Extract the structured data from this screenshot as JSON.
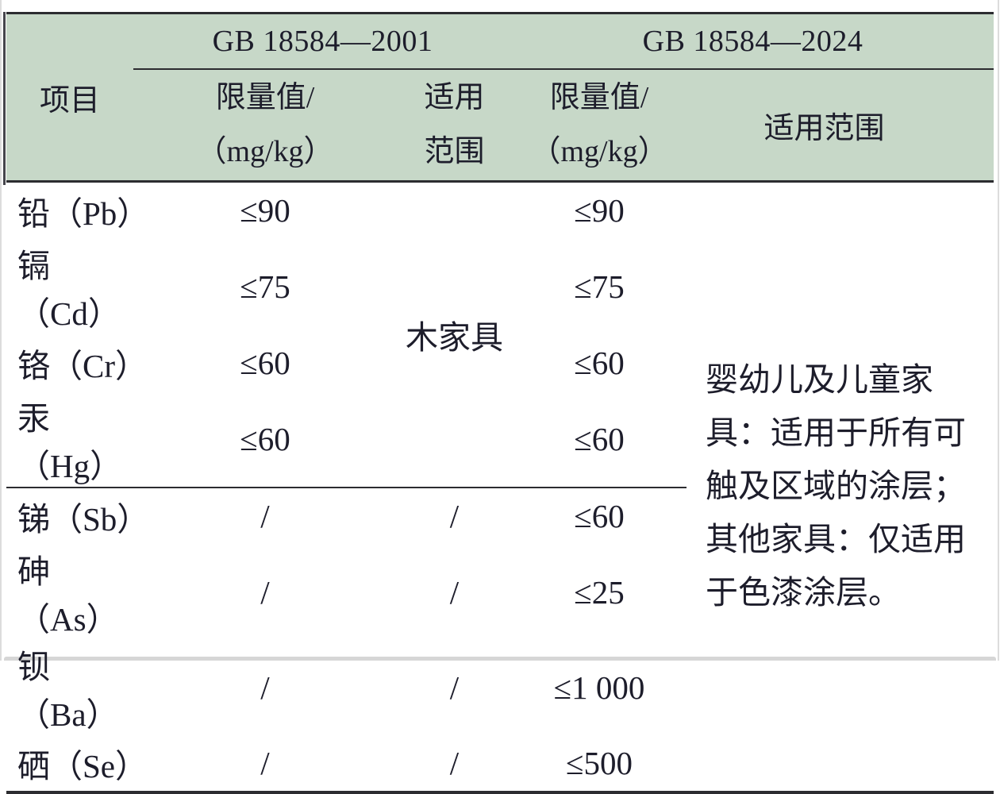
{
  "table": {
    "colors": {
      "header_bg": "#c7d8c8",
      "rule_line": "#2c2c30",
      "text": "#1d1d2b"
    },
    "header": {
      "item_label": "项目",
      "group_2001": {
        "title": "GB 18584—2001",
        "limit_line1": "限量值/",
        "limit_line2": "（mg/kg）",
        "scope_line1": "适用",
        "scope_line2": "范围"
      },
      "group_2024": {
        "title": "GB 18584—2024",
        "limit_line1": "限量值/",
        "limit_line2": "（mg/kg）",
        "scope_label": "适用范围"
      }
    },
    "merged": {
      "scope_2001_wood": "木家具",
      "scope_2024_text": "婴幼儿及儿童家具：适用于所有可触及区域的涂层；其他家具：仅适用于色漆涂层。"
    },
    "rows": [
      {
        "item": "铅（Pb）",
        "limit_2001": "≤90",
        "scope_2001": "",
        "limit_2024": "≤90"
      },
      {
        "item": "镉（Cd）",
        "limit_2001": "≤75",
        "scope_2001": "",
        "limit_2024": "≤75"
      },
      {
        "item": "铬（Cr）",
        "limit_2001": "≤60",
        "scope_2001": "",
        "limit_2024": "≤60"
      },
      {
        "item": "汞（Hg）",
        "limit_2001": "≤60",
        "scope_2001": "",
        "limit_2024": "≤60"
      },
      {
        "item": "锑（Sb）",
        "limit_2001": "/",
        "scope_2001": "/",
        "limit_2024": "≤60"
      },
      {
        "item": "砷（As）",
        "limit_2001": "/",
        "scope_2001": "/",
        "limit_2024": "≤25"
      },
      {
        "item": "钡（Ba）",
        "limit_2001": "/",
        "scope_2001": "/",
        "limit_2024": "≤1 000"
      },
      {
        "item": "硒（Se）",
        "limit_2001": "/",
        "scope_2001": "/",
        "limit_2024": "≤500"
      }
    ]
  }
}
